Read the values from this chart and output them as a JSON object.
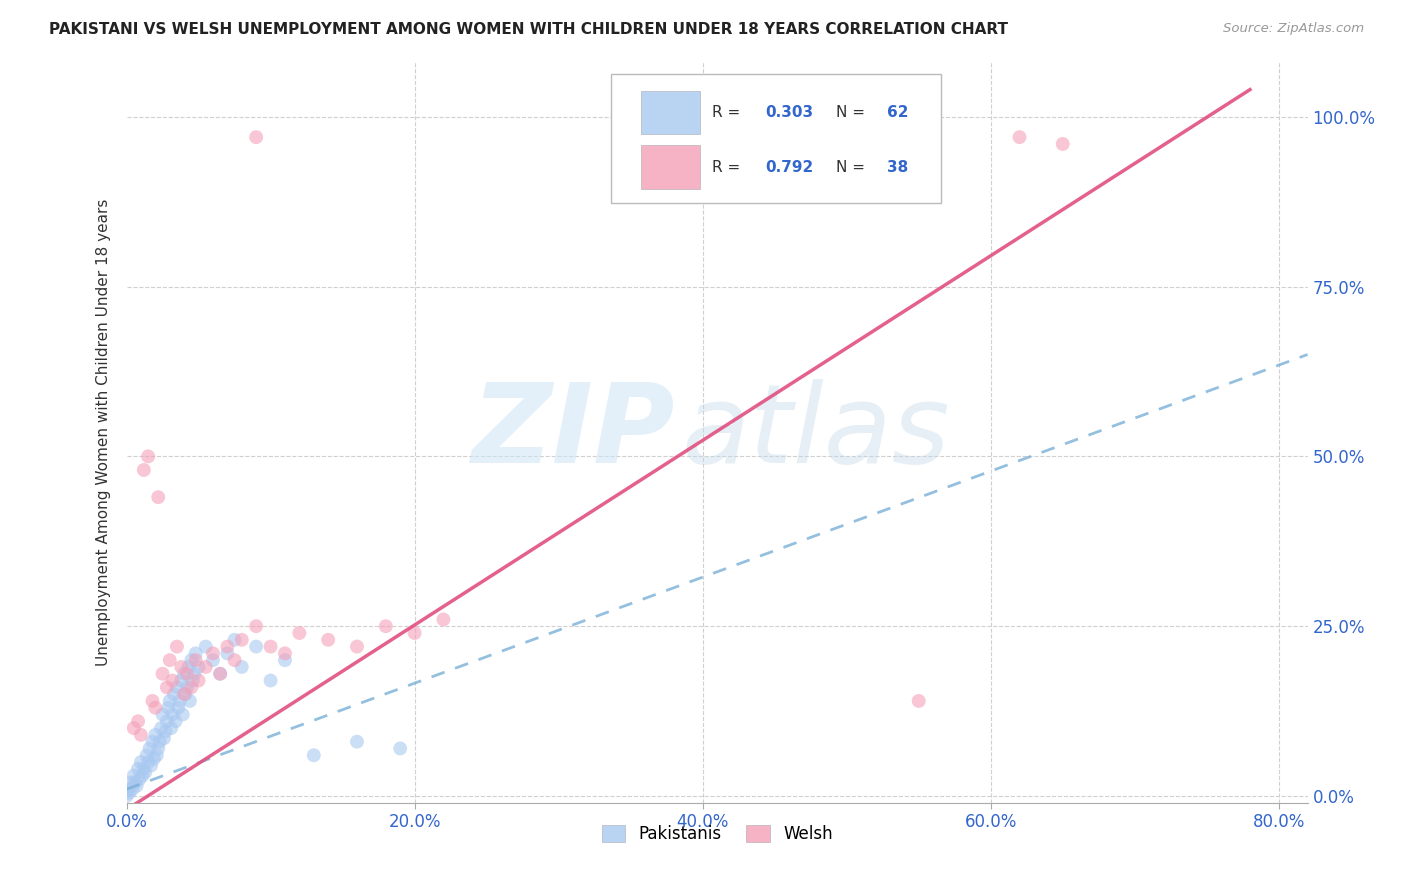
{
  "title": "PAKISTANI VS WELSH UNEMPLOYMENT AMONG WOMEN WITH CHILDREN UNDER 18 YEARS CORRELATION CHART",
  "source": "Source: ZipAtlas.com",
  "ylabel": "Unemployment Among Women with Children Under 18 years",
  "xlim": [
    0.0,
    0.82
  ],
  "ylim": [
    -0.01,
    1.08
  ],
  "pakistani_r": "0.303",
  "pakistani_n": "62",
  "welsh_r": "0.792",
  "welsh_n": "38",
  "pakistani_color": "#a8c8f0",
  "welsh_color": "#f4a0b8",
  "pakistani_line_color": "#7ab0d8",
  "welsh_line_color": "#e05080",
  "background_color": "#ffffff",
  "grid_color": "#d0d0d0",
  "x_tick_vals": [
    0.0,
    0.2,
    0.4,
    0.6,
    0.8
  ],
  "x_tick_labels": [
    "0.0%",
    "20.0%",
    "40.0%",
    "60.0%",
    "80.0%"
  ],
  "y_tick_vals": [
    0.0,
    0.25,
    0.5,
    0.75,
    1.0
  ],
  "y_tick_labels": [
    "0.0%",
    "25.0%",
    "50.0%",
    "75.0%",
    "100.0%"
  ],
  "pakistani_scatter": [
    [
      0.0,
      0.0
    ],
    [
      0.001,
      0.01
    ],
    [
      0.002,
      0.005
    ],
    [
      0.003,
      0.02
    ],
    [
      0.004,
      0.01
    ],
    [
      0.005,
      0.03
    ],
    [
      0.006,
      0.02
    ],
    [
      0.007,
      0.015
    ],
    [
      0.008,
      0.04
    ],
    [
      0.009,
      0.025
    ],
    [
      0.01,
      0.05
    ],
    [
      0.011,
      0.03
    ],
    [
      0.012,
      0.04
    ],
    [
      0.013,
      0.035
    ],
    [
      0.014,
      0.06
    ],
    [
      0.015,
      0.05
    ],
    [
      0.016,
      0.07
    ],
    [
      0.017,
      0.045
    ],
    [
      0.018,
      0.08
    ],
    [
      0.019,
      0.055
    ],
    [
      0.02,
      0.09
    ],
    [
      0.021,
      0.06
    ],
    [
      0.022,
      0.07
    ],
    [
      0.023,
      0.08
    ],
    [
      0.024,
      0.1
    ],
    [
      0.025,
      0.12
    ],
    [
      0.026,
      0.085
    ],
    [
      0.027,
      0.095
    ],
    [
      0.028,
      0.11
    ],
    [
      0.029,
      0.13
    ],
    [
      0.03,
      0.14
    ],
    [
      0.031,
      0.1
    ],
    [
      0.032,
      0.12
    ],
    [
      0.033,
      0.15
    ],
    [
      0.034,
      0.11
    ],
    [
      0.035,
      0.16
    ],
    [
      0.036,
      0.13
    ],
    [
      0.037,
      0.14
    ],
    [
      0.038,
      0.17
    ],
    [
      0.039,
      0.12
    ],
    [
      0.04,
      0.18
    ],
    [
      0.041,
      0.15
    ],
    [
      0.042,
      0.16
    ],
    [
      0.043,
      0.19
    ],
    [
      0.044,
      0.14
    ],
    [
      0.045,
      0.2
    ],
    [
      0.046,
      0.17
    ],
    [
      0.047,
      0.18
    ],
    [
      0.048,
      0.21
    ],
    [
      0.05,
      0.19
    ],
    [
      0.055,
      0.22
    ],
    [
      0.06,
      0.2
    ],
    [
      0.065,
      0.18
    ],
    [
      0.07,
      0.21
    ],
    [
      0.075,
      0.23
    ],
    [
      0.08,
      0.19
    ],
    [
      0.09,
      0.22
    ],
    [
      0.1,
      0.17
    ],
    [
      0.11,
      0.2
    ],
    [
      0.13,
      0.06
    ],
    [
      0.16,
      0.08
    ],
    [
      0.19,
      0.07
    ]
  ],
  "welsh_scatter": [
    [
      0.005,
      0.1
    ],
    [
      0.008,
      0.11
    ],
    [
      0.01,
      0.09
    ],
    [
      0.012,
      0.48
    ],
    [
      0.015,
      0.5
    ],
    [
      0.018,
      0.14
    ],
    [
      0.02,
      0.13
    ],
    [
      0.022,
      0.44
    ],
    [
      0.025,
      0.18
    ],
    [
      0.028,
      0.16
    ],
    [
      0.03,
      0.2
    ],
    [
      0.032,
      0.17
    ],
    [
      0.035,
      0.22
    ],
    [
      0.038,
      0.19
    ],
    [
      0.04,
      0.15
    ],
    [
      0.042,
      0.18
    ],
    [
      0.045,
      0.16
    ],
    [
      0.048,
      0.2
    ],
    [
      0.05,
      0.17
    ],
    [
      0.055,
      0.19
    ],
    [
      0.06,
      0.21
    ],
    [
      0.065,
      0.18
    ],
    [
      0.07,
      0.22
    ],
    [
      0.075,
      0.2
    ],
    [
      0.08,
      0.23
    ],
    [
      0.09,
      0.25
    ],
    [
      0.1,
      0.22
    ],
    [
      0.11,
      0.21
    ],
    [
      0.12,
      0.24
    ],
    [
      0.14,
      0.23
    ],
    [
      0.16,
      0.22
    ],
    [
      0.18,
      0.25
    ],
    [
      0.2,
      0.24
    ],
    [
      0.22,
      0.26
    ],
    [
      0.55,
      0.14
    ],
    [
      0.62,
      0.97
    ],
    [
      0.65,
      0.96
    ],
    [
      0.09,
      0.97
    ]
  ],
  "pakistani_trend_x": [
    0.0,
    0.82
  ],
  "pakistani_trend_y": [
    0.01,
    0.65
  ],
  "welsh_trend_x": [
    0.0,
    0.78
  ],
  "welsh_trend_y": [
    -0.02,
    1.04
  ]
}
